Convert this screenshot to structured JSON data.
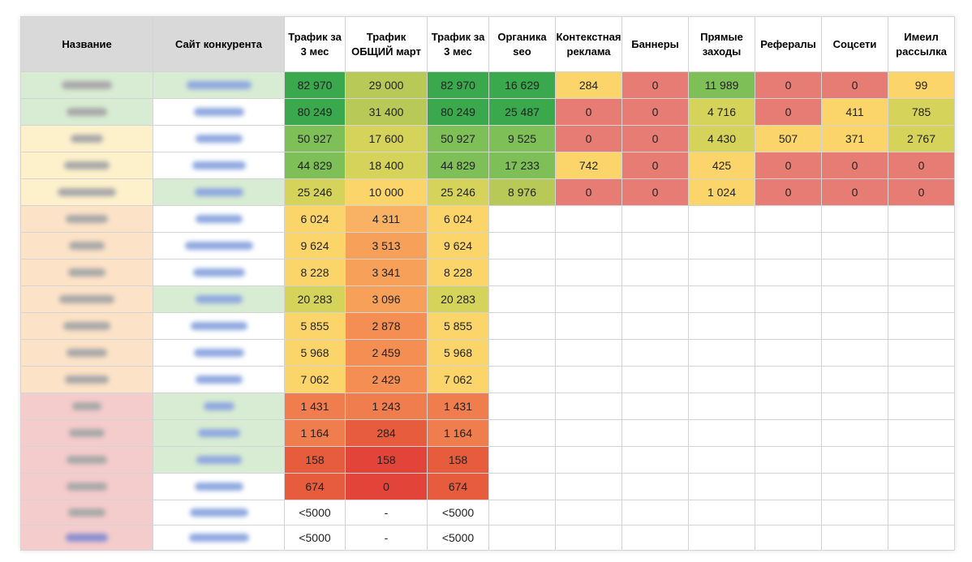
{
  "headers": [
    "Название",
    "Сайт конкурента",
    "Трафик за 3 мес",
    "Трафик ОБЩИЙ март",
    "Трафик за 3 мес",
    "Органика seo",
    "Контекстная реклама",
    "Баннеры",
    "Прямые заходы",
    "Рефералы",
    "Соцсети",
    "Имеил рассылка"
  ],
  "rows": [
    [
      "82 970",
      "29 000",
      "82 970",
      "16 629",
      "284",
      "0",
      "11 989",
      "0",
      "0",
      "99"
    ],
    [
      "80 249",
      "31 400",
      "80 249",
      "25 487",
      "0",
      "0",
      "4 716",
      "0",
      "411",
      "785"
    ],
    [
      "50 927",
      "17 600",
      "50 927",
      "9 525",
      "0",
      "0",
      "4 430",
      "507",
      "371",
      "2 767"
    ],
    [
      "44 829",
      "18 400",
      "44 829",
      "17 233",
      "742",
      "0",
      "425",
      "0",
      "0",
      "0"
    ],
    [
      "25 246",
      "10 000",
      "25 246",
      "8 976",
      "0",
      "0",
      "1 024",
      "0",
      "0",
      "0"
    ],
    [
      "6 024",
      "4 311",
      "6 024",
      "",
      "",
      "",
      "",
      "",
      "",
      ""
    ],
    [
      "9 624",
      "3 513",
      "9 624",
      "",
      "",
      "",
      "",
      "",
      "",
      ""
    ],
    [
      "8 228",
      "3 341",
      "8 228",
      "",
      "",
      "",
      "",
      "",
      "",
      ""
    ],
    [
      "20 283",
      "3 096",
      "20 283",
      "",
      "",
      "",
      "",
      "",
      "",
      ""
    ],
    [
      "5 855",
      "2 878",
      "5 855",
      "",
      "",
      "",
      "",
      "",
      "",
      ""
    ],
    [
      "5 968",
      "2 459",
      "5 968",
      "",
      "",
      "",
      "",
      "",
      "",
      ""
    ],
    [
      "7 062",
      "2 429",
      "7 062",
      "",
      "",
      "",
      "",
      "",
      "",
      ""
    ],
    [
      "1 431",
      "1 243",
      "1 431",
      "",
      "",
      "",
      "",
      "",
      "",
      ""
    ],
    [
      "1 164",
      "284",
      "1 164",
      "",
      "",
      "",
      "",
      "",
      "",
      ""
    ],
    [
      "158",
      "158",
      "158",
      "",
      "",
      "",
      "",
      "",
      "",
      ""
    ],
    [
      "674",
      "0",
      "674",
      "",
      "",
      "",
      "",
      "",
      "",
      ""
    ],
    [
      "<5000",
      "-",
      "<5000",
      "",
      "",
      "",
      "",
      "",
      "",
      ""
    ],
    [
      "<5000",
      "-",
      "<5000",
      "",
      "",
      "",
      "",
      "",
      "",
      ""
    ]
  ],
  "colors": {
    "dark_green": "#3aa84c",
    "green": "#7fbf58",
    "yellow_green": "#b9c957",
    "olive_yellow": "#d5d35a",
    "yellow": "#fcd56a",
    "light_orange": "#f9b263",
    "orange": "#f6a05a",
    "dark_orange": "#f48e52",
    "orange_red": "#f07d4d",
    "red": "#e75c3c",
    "dark_red": "#e2443a",
    "pink_red": "#e67c73",
    "header_grey": "#d9d9d9",
    "tint_green": "#d8ecd3",
    "tint_yellow": "#fdf1cc",
    "tint_peach": "#fce2c7",
    "tint_pink": "#f4cccc",
    "tint_white": "#ffffff"
  },
  "cell_colors": [
    [
      "dark_green",
      "yellow_green",
      "dark_green",
      "dark_green",
      "yellow",
      "pink_red",
      "green",
      "pink_red",
      "pink_red",
      "yellow"
    ],
    [
      "dark_green",
      "yellow_green",
      "dark_green",
      "dark_green",
      "pink_red",
      "pink_red",
      "olive_yellow",
      "pink_red",
      "yellow",
      "olive_yellow"
    ],
    [
      "green",
      "olive_yellow",
      "green",
      "green",
      "pink_red",
      "pink_red",
      "olive_yellow",
      "yellow",
      "yellow",
      "olive_yellow"
    ],
    [
      "green",
      "olive_yellow",
      "green",
      "green",
      "yellow",
      "pink_red",
      "yellow",
      "pink_red",
      "pink_red",
      "pink_red"
    ],
    [
      "olive_yellow",
      "yellow",
      "olive_yellow",
      "yellow_green",
      "pink_red",
      "pink_red",
      "yellow",
      "pink_red",
      "pink_red",
      "pink_red"
    ],
    [
      "yellow",
      "light_orange",
      "yellow",
      "",
      "",
      "",
      "",
      "",
      "",
      ""
    ],
    [
      "yellow",
      "orange",
      "yellow",
      "",
      "",
      "",
      "",
      "",
      "",
      ""
    ],
    [
      "yellow",
      "orange",
      "yellow",
      "",
      "",
      "",
      "",
      "",
      "",
      ""
    ],
    [
      "olive_yellow",
      "orange",
      "olive_yellow",
      "",
      "",
      "",
      "",
      "",
      "",
      ""
    ],
    [
      "yellow",
      "dark_orange",
      "yellow",
      "",
      "",
      "",
      "",
      "",
      "",
      ""
    ],
    [
      "yellow",
      "dark_orange",
      "yellow",
      "",
      "",
      "",
      "",
      "",
      "",
      ""
    ],
    [
      "yellow",
      "dark_orange",
      "yellow",
      "",
      "",
      "",
      "",
      "",
      "",
      ""
    ],
    [
      "orange_red",
      "orange_red",
      "orange_red",
      "",
      "",
      "",
      "",
      "",
      "",
      ""
    ],
    [
      "orange_red",
      "red",
      "orange_red",
      "",
      "",
      "",
      "",
      "",
      "",
      ""
    ],
    [
      "red",
      "dark_red",
      "red",
      "",
      "",
      "",
      "",
      "",
      "",
      ""
    ],
    [
      "red",
      "dark_red",
      "red",
      "",
      "",
      "",
      "",
      "",
      "",
      ""
    ],
    [
      "",
      "",
      "",
      "",
      "",
      "",
      "",
      "",
      "",
      ""
    ],
    [
      "",
      "",
      "",
      "",
      "",
      "",
      "",
      "",
      "",
      ""
    ]
  ],
  "row_tints": [
    "tint_green",
    "tint_green",
    "tint_yellow",
    "tint_yellow",
    "tint_yellow",
    "tint_peach",
    "tint_peach",
    "tint_peach",
    "tint_peach",
    "tint_peach",
    "tint_peach",
    "tint_peach",
    "tint_pink",
    "tint_pink",
    "tint_pink",
    "tint_pink",
    "tint_pink",
    "tint_pink"
  ],
  "site_tints": [
    "tint_green",
    "tint_white",
    "tint_white",
    "tint_white",
    "tint_green",
    "tint_white",
    "tint_white",
    "tint_white",
    "tint_green",
    "tint_white",
    "tint_white",
    "tint_white",
    "tint_green",
    "tint_green",
    "tint_green",
    "tint_white",
    "tint_white",
    "tint_white"
  ]
}
